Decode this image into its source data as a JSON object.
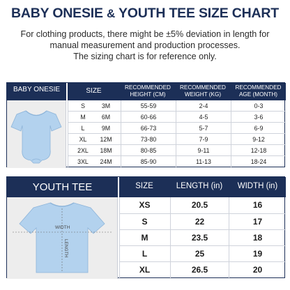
{
  "title": {
    "part1": "BABY ONESIE",
    "amp": "&",
    "part2": "YOUTH TEE SIZE CHART"
  },
  "note": {
    "line1": "For clothing products, there might be ±5% deviation in length for",
    "line2": "manual measurement and production processes.",
    "line3": "The sizing chart is for reference only."
  },
  "onesie": {
    "label": "BABY ONESIE",
    "image_icon": "baby-onesie-icon",
    "headers": {
      "size": "SIZE",
      "height": "RECOMMENDED\nHEIGHT (CM)",
      "weight": "RECOMMENDED\nWEIGHT (KG)",
      "age": "RECOMMENDED\nAGE (MONTH)"
    },
    "rows": [
      {
        "size": "S",
        "months": "3M",
        "height": "55-59",
        "weight": "2-4",
        "age": "0-3"
      },
      {
        "size": "M",
        "months": "6M",
        "height": "60-66",
        "weight": "4-5",
        "age": "3-6"
      },
      {
        "size": "L",
        "months": "9M",
        "height": "66-73",
        "weight": "5-7",
        "age": "6-9"
      },
      {
        "size": "XL",
        "months": "12M",
        "height": "73-80",
        "weight": "7-9",
        "age": "9-12"
      },
      {
        "size": "2XL",
        "months": "18M",
        "height": "80-85",
        "weight": "9-11",
        "age": "12-18"
      },
      {
        "size": "3XL",
        "months": "24M",
        "height": "85-90",
        "weight": "11-13",
        "age": "18-24"
      }
    ]
  },
  "tee": {
    "label": "YOUTH TEE",
    "image_icon": "youth-tee-icon",
    "width_label": "WIDTH",
    "length_label": "LENGTH",
    "headers": {
      "size": "SIZE",
      "length": "LENGTH (in)",
      "width": "WIDTH (in)"
    },
    "rows": [
      {
        "size": "XS",
        "length": "20.5",
        "width": "16"
      },
      {
        "size": "S",
        "length": "22",
        "width": "17"
      },
      {
        "size": "M",
        "length": "23.5",
        "width": "18"
      },
      {
        "size": "L",
        "length": "25",
        "width": "19"
      },
      {
        "size": "XL",
        "length": "26.5",
        "width": "20"
      }
    ]
  },
  "colors": {
    "navy": "#1c2f57",
    "garment": "#b3d2ee",
    "image_bg": "#ededed"
  }
}
